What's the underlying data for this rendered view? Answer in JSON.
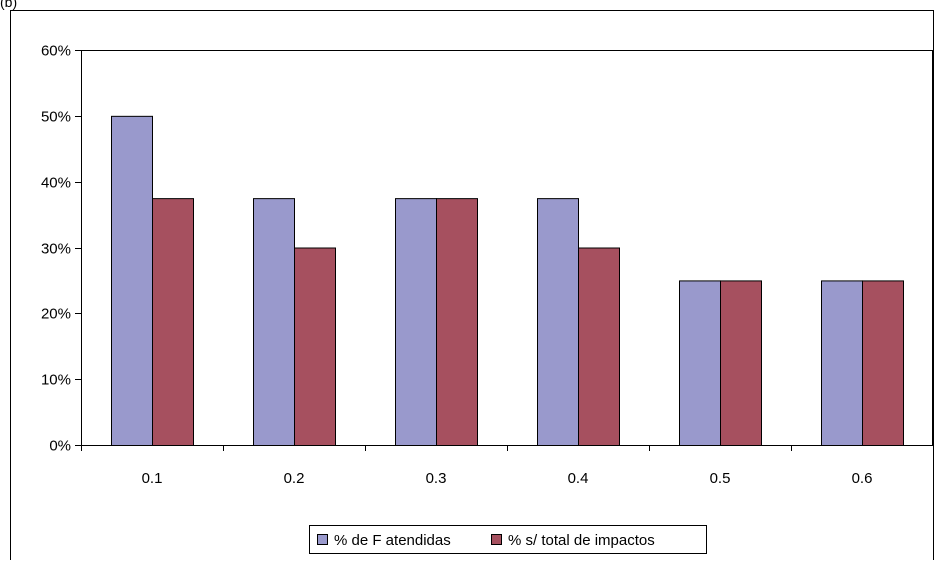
{
  "chart_data": {
    "type": "bar",
    "corner_text": "(b)",
    "categories": [
      "0.1",
      "0.2",
      "0.3",
      "0.4",
      "0.5",
      "0.6"
    ],
    "series": [
      {
        "name": "% de F atendidas",
        "values": [
          50,
          37.5,
          37.5,
          37.5,
          25,
          25
        ],
        "color": "#9999cc"
      },
      {
        "name": "% s/ total de impactos",
        "values": [
          37.5,
          30,
          37.5,
          30,
          25,
          25
        ],
        "color": "#a6505f"
      }
    ],
    "y_ticks": [
      "0%",
      "10%",
      "20%",
      "30%",
      "40%",
      "50%",
      "60%"
    ],
    "ylim": [
      0,
      60
    ],
    "grid": false,
    "legend_position": "bottom-center"
  }
}
